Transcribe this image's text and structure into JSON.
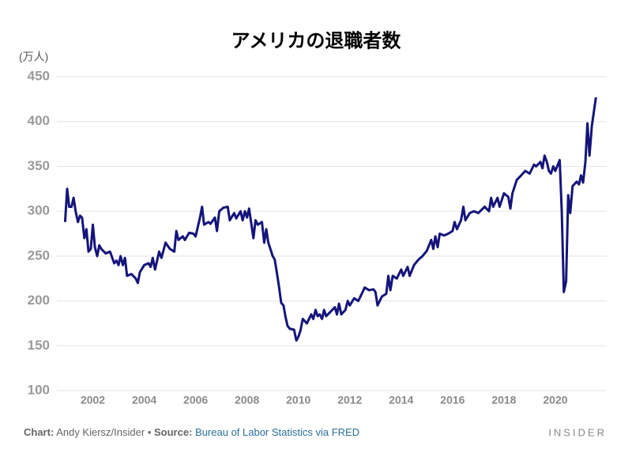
{
  "chart_data": {
    "type": "line",
    "title": "アメリカの退職者数",
    "y_unit": "(万人)",
    "footer": {
      "chart_label": "Chart:",
      "chart_credit": "Andy Kiersz/Insider",
      "separator": "•",
      "source_label": "Source:",
      "source": "Bureau of Labor Statistics via FRED",
      "brand": "INSIDER"
    },
    "xlim": [
      2000.6,
      2022
    ],
    "xticks": [
      2002,
      2004,
      2006,
      2008,
      2010,
      2012,
      2014,
      2016,
      2018,
      2020
    ],
    "ylim": [
      100,
      450
    ],
    "yticks": [
      100,
      150,
      200,
      250,
      300,
      350,
      400,
      450
    ],
    "grid": true,
    "x": [
      2000.92,
      2001.0,
      2001.08,
      2001.17,
      2001.25,
      2001.33,
      2001.42,
      2001.5,
      2001.58,
      2001.67,
      2001.75,
      2001.83,
      2001.92,
      2002.0,
      2002.08,
      2002.17,
      2002.25,
      2002.33,
      2002.5,
      2002.67,
      2002.83,
      2002.92,
      2003.0,
      2003.08,
      2003.17,
      2003.25,
      2003.33,
      2003.5,
      2003.67,
      2003.75,
      2003.83,
      2004.0,
      2004.17,
      2004.25,
      2004.33,
      2004.42,
      2004.58,
      2004.67,
      2004.83,
      2005.0,
      2005.17,
      2005.25,
      2005.33,
      2005.5,
      2005.58,
      2005.75,
      2005.92,
      2006.0,
      2006.17,
      2006.25,
      2006.33,
      2006.5,
      2006.58,
      2006.75,
      2006.83,
      2006.92,
      2007.08,
      2007.25,
      2007.33,
      2007.5,
      2007.58,
      2007.75,
      2007.83,
      2007.92,
      2008.0,
      2008.08,
      2008.25,
      2008.33,
      2008.42,
      2008.58,
      2008.67,
      2008.75,
      2008.83,
      2009.0,
      2009.08,
      2009.17,
      2009.25,
      2009.33,
      2009.42,
      2009.5,
      2009.58,
      2009.67,
      2009.83,
      2009.92,
      2010.0,
      2010.08,
      2010.17,
      2010.33,
      2010.5,
      2010.58,
      2010.67,
      2010.75,
      2010.83,
      2010.92,
      2011.0,
      2011.08,
      2011.25,
      2011.42,
      2011.5,
      2011.58,
      2011.67,
      2011.83,
      2011.92,
      2012.0,
      2012.17,
      2012.33,
      2012.5,
      2012.58,
      2012.75,
      2012.92,
      2013.0,
      2013.08,
      2013.25,
      2013.42,
      2013.5,
      2013.58,
      2013.67,
      2013.83,
      2014.0,
      2014.08,
      2014.25,
      2014.33,
      2014.5,
      2014.67,
      2014.83,
      2015.0,
      2015.17,
      2015.25,
      2015.33,
      2015.42,
      2015.5,
      2015.67,
      2015.83,
      2016.0,
      2016.08,
      2016.17,
      2016.33,
      2016.42,
      2016.5,
      2016.67,
      2016.83,
      2017.0,
      2017.25,
      2017.42,
      2017.5,
      2017.58,
      2017.75,
      2017.83,
      2018.0,
      2018.17,
      2018.25,
      2018.33,
      2018.5,
      2018.67,
      2018.83,
      2019.0,
      2019.17,
      2019.25,
      2019.42,
      2019.5,
      2019.58,
      2019.67,
      2019.75,
      2019.83,
      2019.92,
      2020.0,
      2020.17,
      2020.25,
      2020.33,
      2020.42,
      2020.5,
      2020.58,
      2020.67,
      2020.83,
      2020.92,
      2021.0,
      2021.08,
      2021.17,
      2021.25,
      2021.33,
      2021.42,
      2021.58
    ],
    "series": [
      {
        "name": "退職者数",
        "color": "#14147a",
        "values": [
          288,
          325,
          305,
          305,
          315,
          300,
          288,
          295,
          293,
          270,
          280,
          255,
          258,
          285,
          260,
          250,
          262,
          258,
          253,
          255,
          242,
          245,
          240,
          250,
          240,
          248,
          228,
          230,
          225,
          220,
          232,
          240,
          242,
          238,
          248,
          235,
          255,
          248,
          265,
          258,
          255,
          278,
          268,
          272,
          268,
          276,
          275,
          272,
          293,
          305,
          285,
          288,
          286,
          293,
          278,
          300,
          304,
          305,
          290,
          298,
          292,
          300,
          290,
          300,
          293,
          303,
          270,
          290,
          285,
          288,
          265,
          280,
          265,
          250,
          246,
          230,
          215,
          198,
          195,
          182,
          172,
          169,
          168,
          156,
          160,
          167,
          180,
          175,
          185,
          180,
          190,
          183,
          185,
          180,
          190,
          183,
          188,
          193,
          185,
          197,
          185,
          190,
          200,
          195,
          203,
          200,
          210,
          215,
          212,
          213,
          210,
          195,
          205,
          208,
          228,
          212,
          228,
          225,
          235,
          228,
          238,
          228,
          240,
          246,
          250,
          256,
          268,
          258,
          272,
          260,
          275,
          273,
          275,
          278,
          288,
          280,
          290,
          305,
          290,
          298,
          300,
          298,
          305,
          300,
          315,
          305,
          315,
          305,
          320,
          316,
          303,
          320,
          335,
          340,
          345,
          342,
          352,
          350,
          355,
          348,
          362,
          355,
          345,
          342,
          350,
          345,
          357,
          300,
          210,
          222,
          318,
          298,
          328,
          333,
          330,
          340,
          332,
          355,
          398,
          362,
          395,
          427
        ]
      }
    ]
  }
}
